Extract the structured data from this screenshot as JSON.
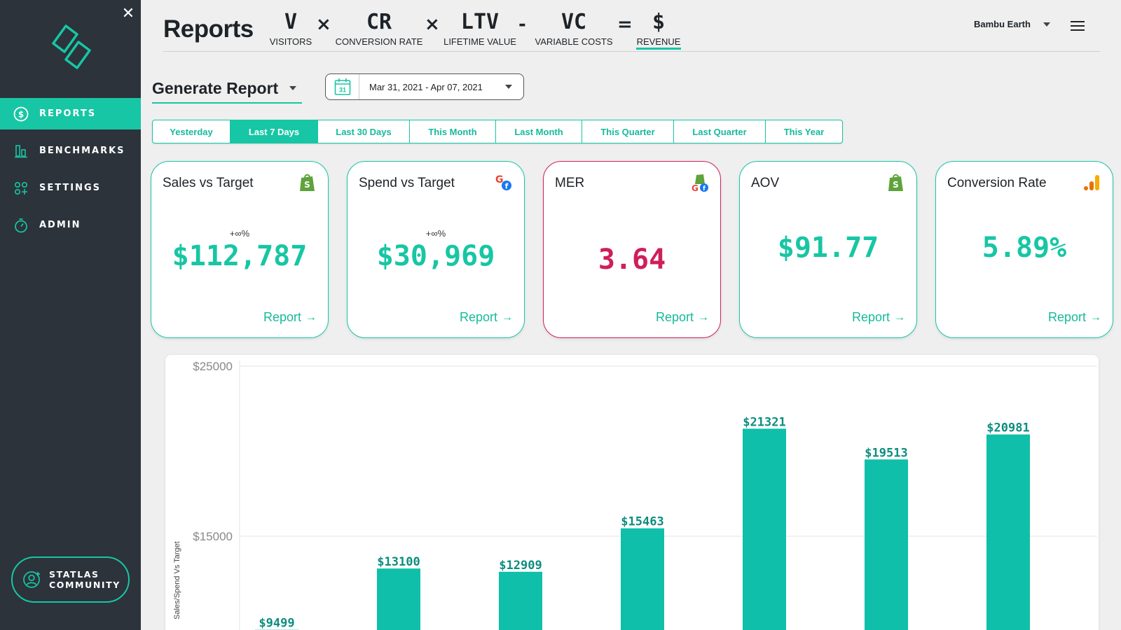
{
  "sidebar": {
    "items": [
      {
        "label": "REPORTS",
        "icon": "dollar-circle-icon",
        "active": true
      },
      {
        "label": "BENCHMARKS",
        "icon": "bar-chart-icon",
        "active": false
      },
      {
        "label": "SETTINGS",
        "icon": "grid-dots-icon",
        "active": false
      },
      {
        "label": "ADMIN",
        "icon": "stopwatch-icon",
        "active": false
      }
    ],
    "community": {
      "line1": "STATLAS",
      "line2": "COMMUNITY"
    }
  },
  "header": {
    "title": "Reports",
    "formula": {
      "terms": [
        {
          "sym": "V",
          "cap": "VISITORS"
        },
        {
          "sym": "CR",
          "cap": "CONVERSION RATE"
        },
        {
          "sym": "LTV",
          "cap": "LIFETIME VALUE"
        },
        {
          "sym": "VC",
          "cap": "VARIABLE COSTS"
        },
        {
          "sym": "$",
          "cap": "REVENUE"
        }
      ],
      "ops": [
        "×",
        "×",
        "-",
        "="
      ]
    },
    "account": "Bambu Earth"
  },
  "report": {
    "generate_label": "Generate Report",
    "date_range": "Mar 31, 2021 - Apr 07, 2021",
    "calendar_day": "31"
  },
  "tabs": [
    {
      "label": "Yesterday",
      "active": false
    },
    {
      "label": "Last 7 Days",
      "active": true
    },
    {
      "label": "Last 30 Days",
      "active": false
    },
    {
      "label": "This Month",
      "active": false
    },
    {
      "label": "Last Month",
      "active": false
    },
    {
      "label": "This Quarter",
      "active": false
    },
    {
      "label": "Last Quarter",
      "active": false
    },
    {
      "label": "This Year",
      "active": false
    }
  ],
  "cards": [
    {
      "title": "Sales vs Target",
      "delta": "+∞%",
      "value": "$112,787",
      "link": "Report",
      "icon": "shopify-icon",
      "status": "good"
    },
    {
      "title": "Spend vs Target",
      "delta": "+∞%",
      "value": "$30,969",
      "link": "Report",
      "icon": "google-facebook-icon",
      "status": "good"
    },
    {
      "title": "MER",
      "delta": "",
      "value": "3.64",
      "link": "Report",
      "icon": "shopify-google-facebook-icon",
      "status": "bad"
    },
    {
      "title": "AOV",
      "delta": "",
      "value": "$91.77",
      "link": "Report",
      "icon": "shopify-icon",
      "status": "good"
    },
    {
      "title": "Conversion Rate",
      "delta": "",
      "value": "5.89%",
      "link": "Report",
      "icon": "google-analytics-icon",
      "status": "good"
    }
  ],
  "colors": {
    "accent": "#17c6a4",
    "sidebar": "#2c333b",
    "alert": "#cf1f5a",
    "bar": "#0fbfaa",
    "bar_label": "#0b8d7e"
  },
  "chart_data": {
    "type": "bar",
    "ylabel": "Sales/Spend Vs Target",
    "y_ticks": [
      "$25000",
      "$15000"
    ],
    "ylim": [
      5000,
      25000
    ],
    "values": [
      9499,
      13100,
      12909,
      15463,
      21321,
      19513,
      20981
    ],
    "value_labels": [
      "$9499",
      "$13100",
      "$12909",
      "$15463",
      "$21321",
      "$19513",
      "$20981"
    ],
    "grid": true
  }
}
